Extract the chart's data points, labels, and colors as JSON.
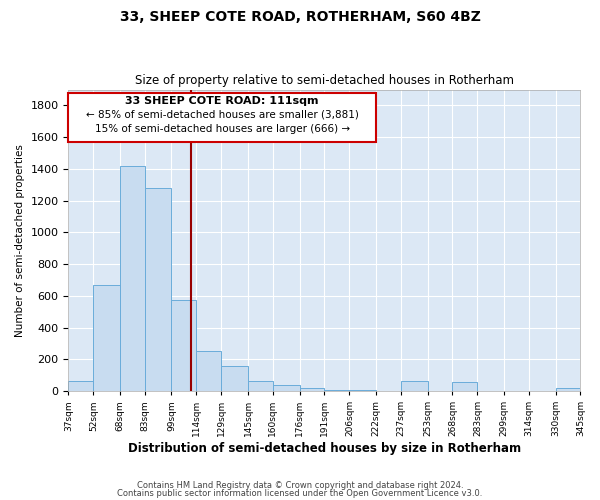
{
  "title": "33, SHEEP COTE ROAD, ROTHERHAM, S60 4BZ",
  "subtitle": "Size of property relative to semi-detached houses in Rotherham",
  "xlabel": "Distribution of semi-detached houses by size in Rotherham",
  "ylabel": "Number of semi-detached properties",
  "bar_color": "#c8dcf0",
  "bar_edge_color": "#6aacda",
  "background_color": "#dce8f5",
  "grid_color": "#ffffff",
  "vline_x": 111,
  "vline_color": "#990000",
  "property_label": "33 SHEEP COTE ROAD: 111sqm",
  "smaller_pct": 85,
  "smaller_count": 3881,
  "larger_pct": 15,
  "larger_count": 666,
  "bin_edges": [
    37,
    52,
    68,
    83,
    99,
    114,
    129,
    145,
    160,
    176,
    191,
    206,
    222,
    237,
    253,
    268,
    283,
    299,
    314,
    330,
    345
  ],
  "bar_heights": [
    65,
    670,
    1420,
    1280,
    575,
    255,
    155,
    65,
    35,
    20,
    5,
    5,
    3,
    65,
    3,
    60,
    3,
    3,
    3,
    20
  ],
  "ylim": [
    0,
    1900
  ],
  "yticks": [
    0,
    200,
    400,
    600,
    800,
    1000,
    1200,
    1400,
    1600,
    1800
  ],
  "footer1": "Contains HM Land Registry data © Crown copyright and database right 2024.",
  "footer2": "Contains public sector information licensed under the Open Government Licence v3.0."
}
